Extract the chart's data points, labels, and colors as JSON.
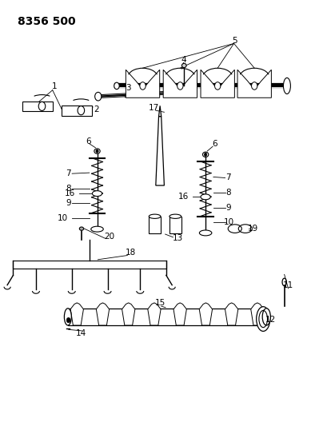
{
  "title": "8356 500",
  "bg_color": "#ffffff",
  "line_color": "#000000",
  "title_fontsize": 10,
  "title_weight": "bold",
  "fig_width": 4.1,
  "fig_height": 5.33,
  "dpi": 100
}
